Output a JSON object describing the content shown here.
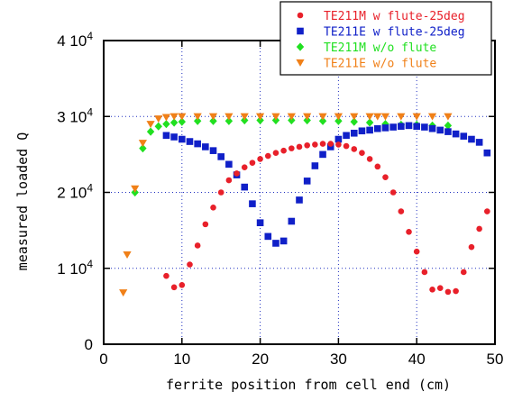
{
  "chart_data": {
    "type": "scatter",
    "xlabel": "ferrite position from cell end (cm)",
    "ylabel": "measured loaded Q",
    "xlim": [
      0,
      50
    ],
    "ylim": [
      0,
      40000
    ],
    "x_ticks": [
      0,
      10,
      20,
      30,
      40,
      50
    ],
    "x_tick_labels": [
      "0",
      "10",
      "20",
      "30",
      "40",
      "50"
    ],
    "y_ticks": [
      0,
      10000,
      20000,
      30000,
      40000
    ],
    "y_tick_labels": [
      {
        "mantissa": "0",
        "exponent": ""
      },
      {
        "mantissa": "1 10",
        "exponent": "4"
      },
      {
        "mantissa": "2 10",
        "exponent": "4"
      },
      {
        "mantissa": "3 10",
        "exponent": "4"
      },
      {
        "mantissa": "4 10",
        "exponent": "4"
      }
    ],
    "grid": true,
    "legend_position": "top-right",
    "series": [
      {
        "name": "TE211M w flute-25deg",
        "color": "#e8202a",
        "marker": "circle",
        "x": [
          8,
          9,
          10,
          11,
          12,
          13,
          14,
          15,
          16,
          17,
          18,
          19,
          20,
          21,
          22,
          23,
          24,
          25,
          26,
          27,
          28,
          29,
          30,
          31,
          32,
          33,
          34,
          35,
          36,
          37,
          38,
          39,
          40,
          41,
          42,
          43,
          44,
          45,
          46,
          47,
          48,
          49
        ],
        "y": [
          9000,
          7500,
          7800,
          10500,
          13000,
          15800,
          18000,
          20000,
          21600,
          22500,
          23300,
          23900,
          24400,
          24800,
          25200,
          25500,
          25800,
          26000,
          26200,
          26300,
          26400,
          26400,
          26300,
          26100,
          25700,
          25200,
          24400,
          23400,
          22000,
          20000,
          17500,
          14800,
          12200,
          9500,
          7200,
          7400,
          6900,
          7000,
          9500,
          12800,
          15200,
          17500
        ]
      },
      {
        "name": "TE211E w flute-25deg",
        "color": "#1020c8",
        "marker": "square",
        "x": [
          8,
          9,
          10,
          11,
          12,
          13,
          14,
          15,
          16,
          17,
          18,
          19,
          20,
          21,
          22,
          23,
          24,
          25,
          26,
          27,
          28,
          29,
          30,
          31,
          32,
          33,
          34,
          35,
          36,
          37,
          38,
          39,
          40,
          41,
          42,
          43,
          44,
          45,
          46,
          47,
          48,
          49
        ],
        "y": [
          27500,
          27300,
          27000,
          26700,
          26400,
          26000,
          25500,
          24700,
          23700,
          22300,
          20700,
          18500,
          16000,
          14200,
          13300,
          13600,
          16200,
          19000,
          21500,
          23500,
          25000,
          26000,
          27000,
          27500,
          27800,
          28100,
          28200,
          28400,
          28500,
          28600,
          28700,
          28800,
          28700,
          28600,
          28400,
          28200,
          28000,
          27700,
          27400,
          27000,
          26600,
          25200
        ]
      },
      {
        "name": "TE211M w/o flute",
        "color": "#20e020",
        "marker": "diamond",
        "x": [
          4,
          5,
          6,
          7,
          8,
          9,
          10,
          12,
          14,
          16,
          18,
          20,
          22,
          24,
          26,
          28,
          30,
          32,
          34,
          36,
          38,
          40,
          42,
          44
        ],
        "y": [
          20000,
          25800,
          28000,
          28700,
          29000,
          29200,
          29300,
          29400,
          29400,
          29400,
          29500,
          29500,
          29500,
          29500,
          29500,
          29400,
          29400,
          29300,
          29200,
          29000,
          28900,
          28900,
          28800,
          28800
        ]
      },
      {
        "name": "TE211E w/o flute",
        "color": "#f08018",
        "marker": "triangle-down",
        "x": [
          2.5,
          3,
          4,
          5,
          6,
          7,
          8,
          9,
          10,
          12,
          14,
          16,
          18,
          20,
          22,
          24,
          26,
          28,
          30,
          32,
          34,
          35,
          36,
          38,
          40,
          42,
          44
        ],
        "y": [
          6800,
          11800,
          20500,
          26500,
          29000,
          29700,
          29900,
          30000,
          30000,
          30000,
          30000,
          30000,
          30000,
          30000,
          30000,
          30000,
          30000,
          30000,
          30000,
          30000,
          30000,
          30000,
          30000,
          30000,
          30000,
          30000,
          30000
        ]
      }
    ]
  }
}
